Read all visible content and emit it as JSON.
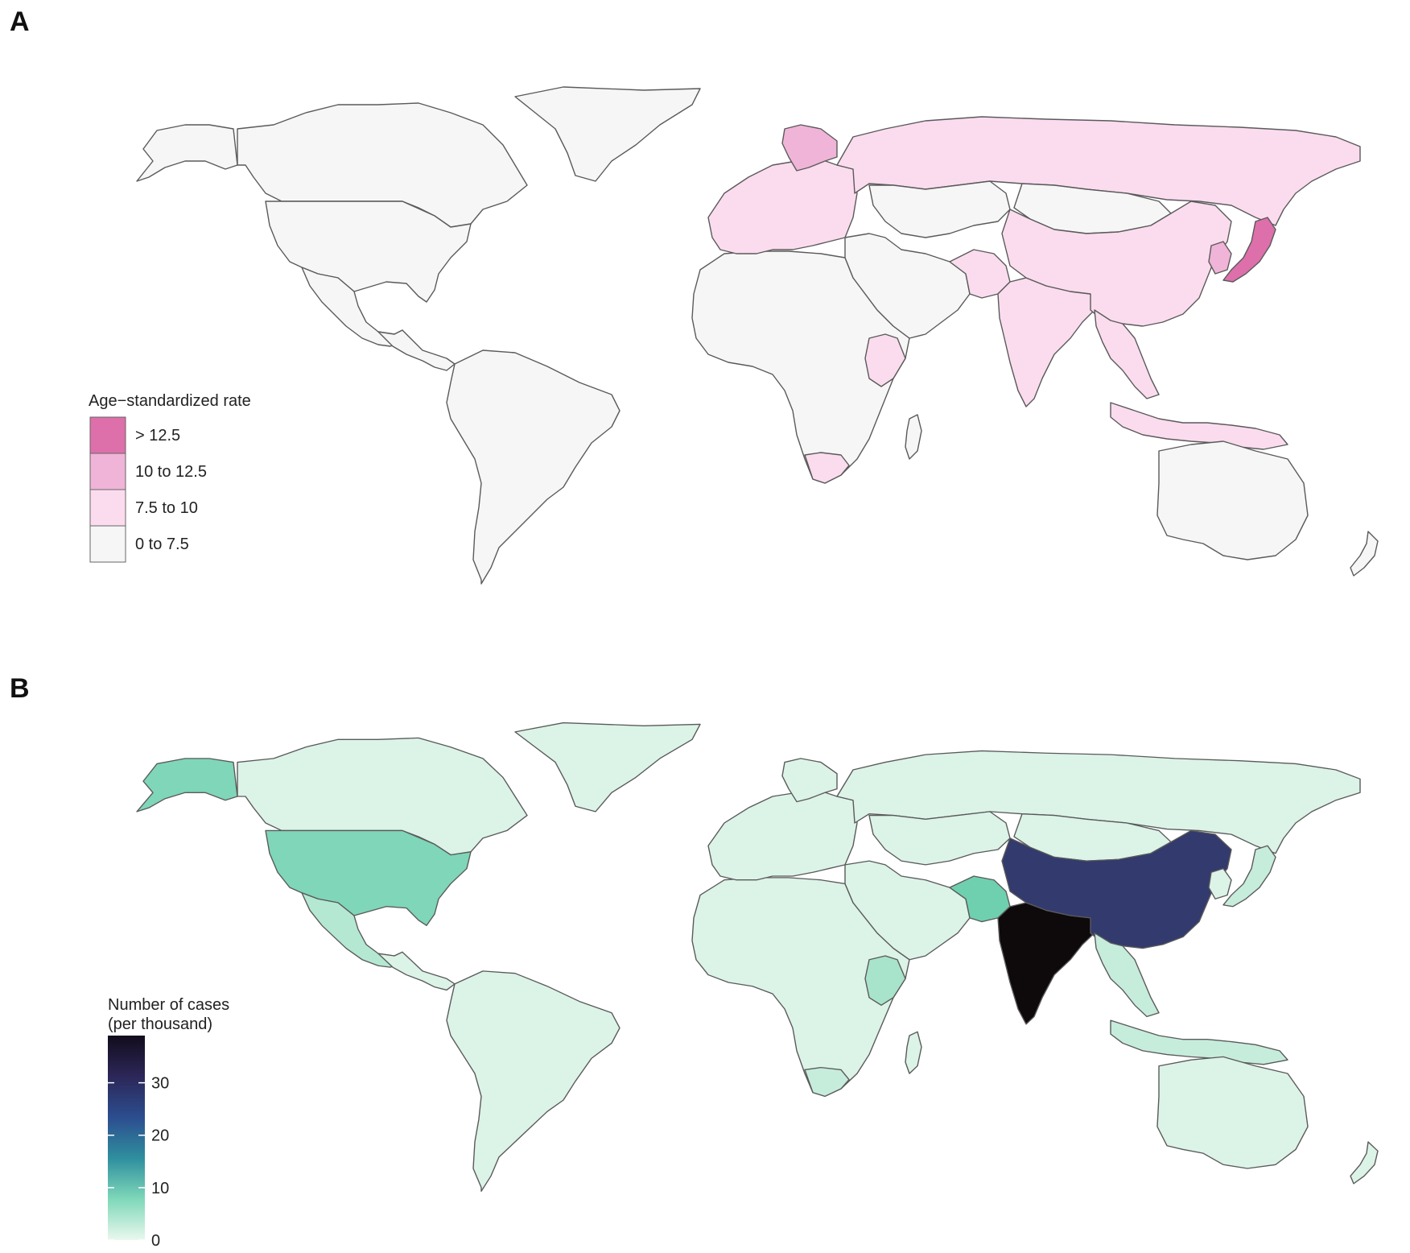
{
  "panels": [
    {
      "letter": "A",
      "legend": {
        "title": "Age−standardized rate",
        "items": [
          {
            "label": "> 12.5",
            "color": "#dd6fab"
          },
          {
            "label": "10 to 12.5",
            "color": "#efb4d7"
          },
          {
            "label": "7.5 to 10",
            "color": "#fbdcee"
          },
          {
            "label": "0 to 7.5",
            "color": "#f6f6f6"
          }
        ]
      },
      "region_colors": {
        "north_america": "#f6f6f6",
        "central_america": "#f6f6f6",
        "south_america": "#f6f6f6",
        "greenland": "#f6f6f6",
        "canada": "#f6f6f6",
        "usa": "#f6f6f6",
        "mexico": "#f6f6f6",
        "europe": "#fbdcee",
        "scandinavia": "#efb4d7",
        "russia": "#fbdcee",
        "africa": "#f6f6f6",
        "ethiopia_somalia": "#fbdcee",
        "south_africa": "#fbdcee",
        "middle_east": "#f6f6f6",
        "central_asia": "#f6f6f6",
        "mongolia": "#f6f6f6",
        "china": "#fbdcee",
        "india": "#fbdcee",
        "pakistan": "#fbdcee",
        "southeast_asia": "#fbdcee",
        "indonesia": "#fbdcee",
        "japan": "#dd6fab",
        "korea": "#efb4d7",
        "australia": "#f6f6f6",
        "new_zealand": "#f6f6f6",
        "madagascar": "#f6f6f6",
        "alaska": "#f6f6f6"
      }
    },
    {
      "letter": "B",
      "legend": {
        "title_line1": "Number of cases",
        "title_line2": "(per thousand)",
        "ticks": [
          "30",
          "20",
          "10",
          "0"
        ],
        "tick_values": [
          30,
          20,
          10,
          0
        ],
        "max_value": 39,
        "gradient": [
          "#eaf8ef",
          "#7fd8b9",
          "#2f8f9e",
          "#2c4d8f",
          "#2c2758",
          "#120c1c"
        ]
      },
      "region_colors": {
        "north_america": "#dcf3e8",
        "central_america": "#dcf3e8",
        "south_america": "#dcf3e8",
        "greenland": "#dcf3e8",
        "canada": "#dcf3e8",
        "usa": "#7fd6b8",
        "mexico": "#b4e8d3",
        "europe": "#dcf3e8",
        "scandinavia": "#dcf3e8",
        "russia": "#dcf3e8",
        "africa": "#dcf3e8",
        "ethiopia_somalia": "#a8e3cb",
        "south_africa": "#c6ecdc",
        "middle_east": "#dcf3e8",
        "central_asia": "#dcf3e8",
        "mongolia": "#dcf3e8",
        "china": "#333a6e",
        "india": "#0e0a0c",
        "pakistan": "#6fd0b0",
        "southeast_asia": "#c6ecdc",
        "indonesia": "#c6ecdc",
        "japan": "#c6ecdc",
        "korea": "#dcf3e8",
        "australia": "#dcf3e8",
        "new_zealand": "#dcf3e8",
        "madagascar": "#dcf3e8",
        "alaska": "#7fd6b8"
      }
    }
  ]
}
